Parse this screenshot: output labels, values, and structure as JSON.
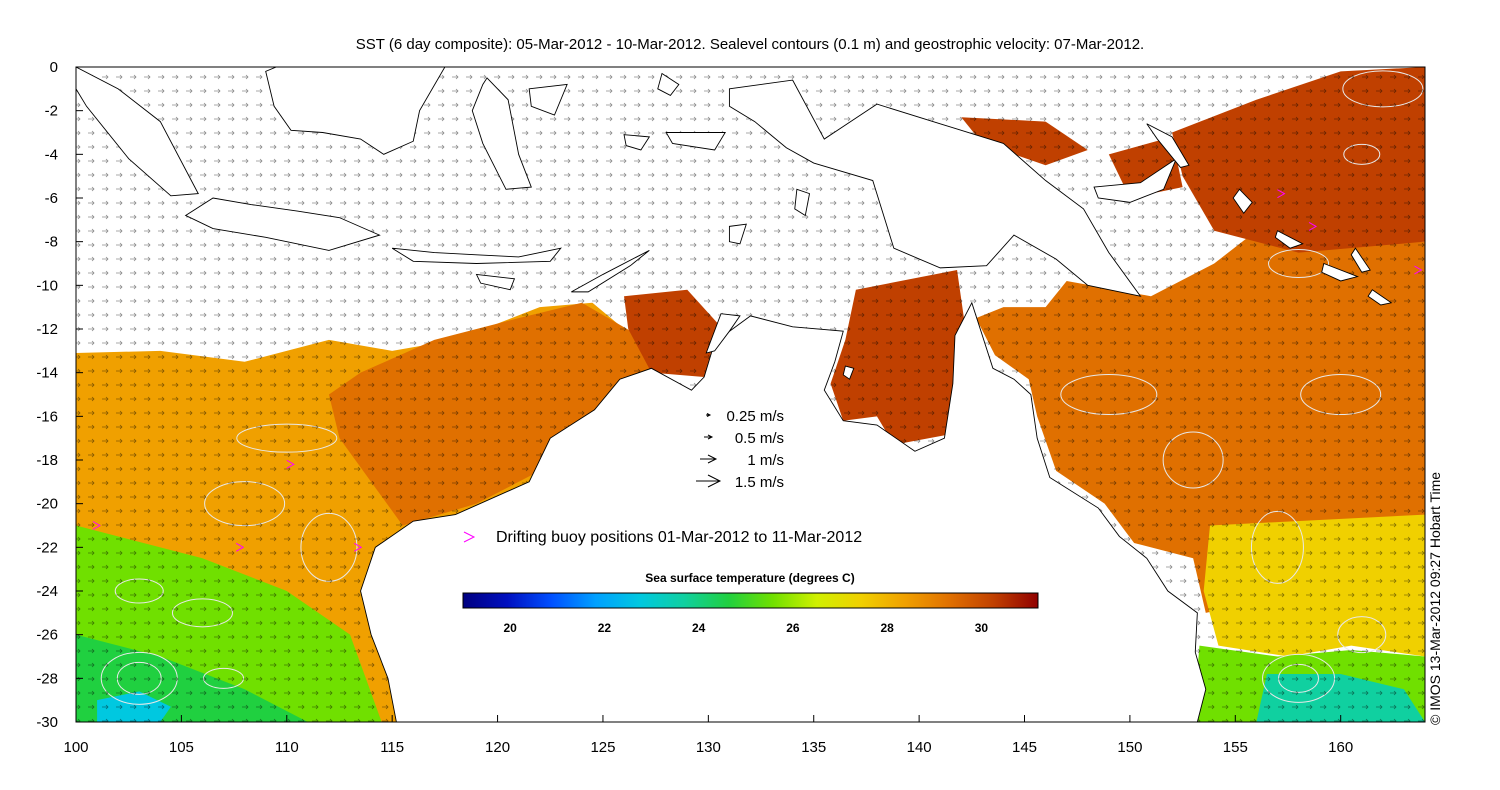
{
  "title": "SST (6 day composite): 05-Mar-2012 - 10-Mar-2012. Sealevel contours (0.1 m) and geostrophic velocity: 07-Mar-2012.",
  "credit": "© IMOS 13-Mar-2012 09:27 Hobart Time",
  "axes": {
    "x_ticks": [
      "100",
      "105",
      "110",
      "115",
      "120",
      "125",
      "130",
      "135",
      "140",
      "145",
      "150",
      "155",
      "160"
    ],
    "y_ticks": [
      "0",
      "-2",
      "-4",
      "-6",
      "-8",
      "-10",
      "-12",
      "-14",
      "-16",
      "-18",
      "-20",
      "-22",
      "-24",
      "-26",
      "-28",
      "-30"
    ],
    "lon_range": [
      100,
      164
    ],
    "lat_range": [
      -30,
      0
    ]
  },
  "velocity_key": [
    {
      "label": "0.25 m/s",
      "speed": 0.25
    },
    {
      "label": "0.5 m/s",
      "speed": 0.5
    },
    {
      "label": "1 m/s",
      "speed": 1
    },
    {
      "label": "1.5 m/s",
      "speed": 1.5
    }
  ],
  "buoy_legend": {
    "label": "Drifting buoy positions 01-Mar-2012 to 11-Mar-2012",
    "color": "#ff00ff"
  },
  "colorbar": {
    "title": "Sea surface temperature (degrees C)",
    "ticks": [
      "20",
      "22",
      "24",
      "26",
      "28",
      "30"
    ],
    "range": [
      19,
      31.2
    ],
    "colors": [
      "#000080",
      "#0010c0",
      "#0050ff",
      "#00a0ff",
      "#00c8e0",
      "#10d0a0",
      "#20d040",
      "#70e000",
      "#d0f000",
      "#f0d000",
      "#f0a000",
      "#e07000",
      "#c04000",
      "#900000"
    ]
  },
  "colors": {
    "land": "#ffffff",
    "coast": "#000000",
    "contour": "#e8e8e8",
    "arrow": "#000000"
  }
}
